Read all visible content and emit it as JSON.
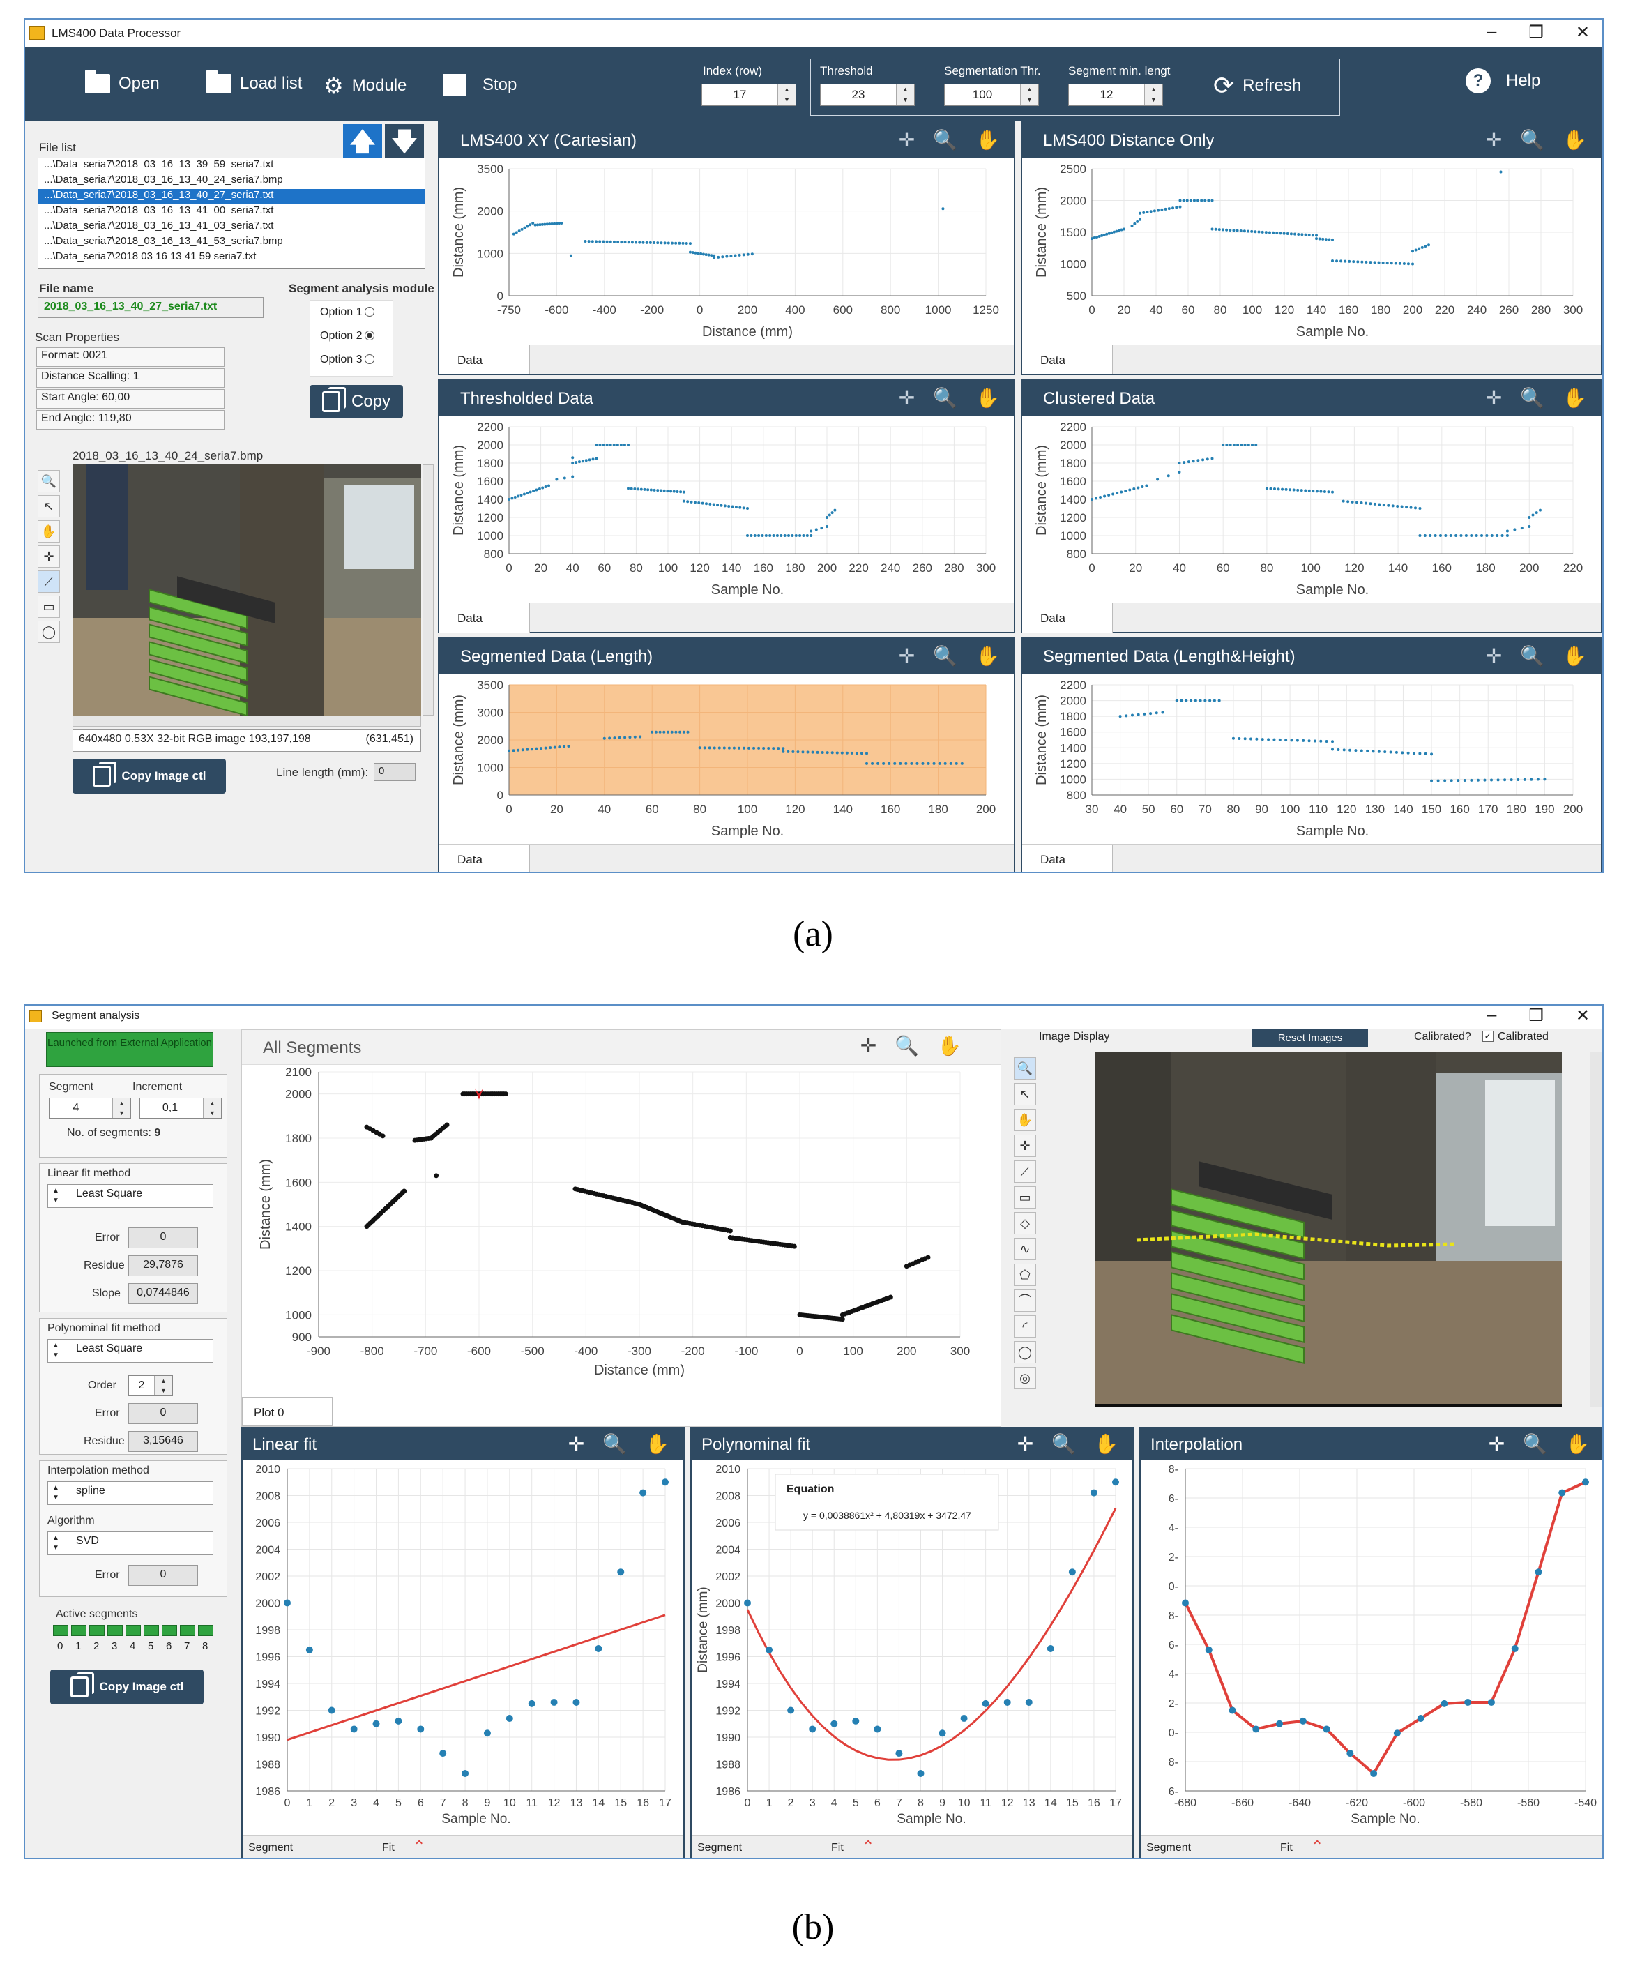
{
  "captions": {
    "a": "(a)",
    "b": "(b)"
  },
  "colors": {
    "toolbar": "#2f4a62",
    "accent": "#1e73c8",
    "dots": "#2580b3",
    "fit": "#e0403a",
    "orange": "#f9c794"
  },
  "appA": {
    "title": "LMS400 Data Processor",
    "toolbar": {
      "open": "Open",
      "load_list": "Load list",
      "module": "Module",
      "stop": "Stop",
      "index_label": "Index (row)",
      "index_value": "17",
      "threshold_label": "Threshold",
      "threshold_value": "23",
      "seg_thr_label": "Segmentation Thr.",
      "seg_thr_value": "100",
      "seg_min_label": "Segment min. lengt",
      "seg_min_value": "12",
      "refresh": "Refresh",
      "help": "Help"
    },
    "file_list_label": "File list",
    "files": [
      "...\\Data_seria7\\2018_03_16_13_39_59_seria7.txt",
      "...\\Data_seria7\\2018_03_16_13_40_24_seria7.bmp",
      "...\\Data_seria7\\2018_03_16_13_40_27_seria7.txt",
      "...\\Data_seria7\\2018_03_16_13_41_00_seria7.txt",
      "...\\Data_seria7\\2018_03_16_13_41_03_seria7.txt",
      "...\\Data_seria7\\2018_03_16_13_41_53_seria7.bmp",
      "...\\Data_seria7\\2018 03 16 13 41 59 seria7.txt"
    ],
    "selected_file_index": 2,
    "file_name_label": "File name",
    "file_name": "2018_03_16_13_40_27_seria7.txt",
    "seg_module_label": "Segment analysis module",
    "options": [
      "Option 1",
      "Option 2",
      "Option 3"
    ],
    "selected_option": 1,
    "copy": "Copy",
    "scan_props_label": "Scan Properties",
    "scan_props": [
      "Format: 0021",
      "Distance Scalling: 1",
      "Start Angle: 60,00",
      "End Angle: 119,80"
    ],
    "image_name": "2018_03_16_13_40_24_seria7.bmp",
    "image_info": "640x480 0.53X 32-bit RGB image 193,197,198",
    "image_coords": "(631,451)",
    "copy_image": "Copy Image ctl",
    "line_length_label": "Line length (mm):",
    "line_length": "0",
    "legend": "Data",
    "panels": [
      {
        "title": "LMS400 XY (Cartesian)",
        "xlabel": "Distance (mm)",
        "ylabel": "Distance (mm)",
        "xticks": [
          "-750",
          "-600",
          "-400",
          "-200",
          "0",
          "200",
          "400",
          "600",
          "800",
          "1000",
          "1250"
        ],
        "yticks": [
          "0",
          "1000",
          "2000",
          "3500"
        ]
      },
      {
        "title": "LMS400 Distance Only",
        "xlabel": "Sample No.",
        "ylabel": "Distance (mm)",
        "xticks": [
          "0",
          "20",
          "40",
          "60",
          "80",
          "100",
          "120",
          "140",
          "160",
          "180",
          "200",
          "220",
          "240",
          "260",
          "280",
          "300"
        ],
        "yticks": [
          "500",
          "1000",
          "1500",
          "2000",
          "2500"
        ]
      },
      {
        "title": "Thresholded Data",
        "xlabel": "Sample No.",
        "ylabel": "Distance (mm)",
        "xticks": [
          "0",
          "20",
          "40",
          "60",
          "80",
          "100",
          "120",
          "140",
          "160",
          "180",
          "200",
          "220",
          "240",
          "260",
          "280",
          "300"
        ],
        "yticks": [
          "800",
          "1000",
          "1200",
          "1400",
          "1600",
          "1800",
          "2000",
          "2200"
        ]
      },
      {
        "title": "Clustered Data",
        "xlabel": "Sample No.",
        "ylabel": "Distance (mm)",
        "xticks": [
          "0",
          "20",
          "40",
          "60",
          "80",
          "100",
          "120",
          "140",
          "160",
          "180",
          "200",
          "220"
        ],
        "yticks": [
          "800",
          "1000",
          "1200",
          "1400",
          "1600",
          "1800",
          "2000",
          "2200"
        ]
      },
      {
        "title": "Segmented Data (Length)",
        "xlabel": "Sample No.",
        "ylabel": "Distance (mm)",
        "xticks": [
          "0",
          "20",
          "40",
          "60",
          "80",
          "100",
          "120",
          "140",
          "160",
          "180",
          "200"
        ],
        "yticks": [
          "0",
          "1000",
          "2000",
          "3000",
          "3500"
        ]
      },
      {
        "title": "Segmented Data (Length&Height)",
        "xlabel": "Sample No.",
        "ylabel": "Distance (mm)",
        "xticks": [
          "30",
          "40",
          "50",
          "60",
          "70",
          "80",
          "90",
          "100",
          "110",
          "120",
          "130",
          "140",
          "150",
          "160",
          "170",
          "180",
          "190",
          "200"
        ],
        "yticks": [
          "800",
          "1000",
          "1200",
          "1400",
          "1600",
          "1800",
          "2000",
          "2200"
        ]
      }
    ]
  },
  "appB": {
    "title": "Segment analysis",
    "launched": "Launched from External Application",
    "segment_label": "Segment",
    "segment_value": "4",
    "increment_label": "Increment",
    "increment_value": "0,1",
    "nseg_label": "No. of segments:",
    "nseg_value": "9",
    "linfit_label": "Linear fit method",
    "linfit_value": "Least Square",
    "error_label": "Error",
    "lin_error": "0",
    "residue_label": "Residue",
    "lin_residue": "29,7876",
    "slope_label": "Slope",
    "lin_slope": "0,0744846",
    "polyfit_label": "Polynominal fit method",
    "polyfit_value": "Least Square",
    "order_label": "Order",
    "order_value": "2",
    "poly_error": "0",
    "poly_residue": "3,15646",
    "interp_label": "Interpolation method",
    "interp_value": "spline",
    "algo_label": "Algorithm",
    "algo_value": "SVD",
    "interp_error": "0",
    "active_label": "Active segments",
    "active_idx": [
      "0",
      "1",
      "2",
      "3",
      "4",
      "5",
      "6",
      "7",
      "8"
    ],
    "copy_image": "Copy Image ctl",
    "all_segments": {
      "title": "All Segments",
      "xlabel": "Distance (mm)",
      "ylabel": "Distance (mm)",
      "legend": "Plot 0",
      "xticks": [
        "-900",
        "-800",
        "-700",
        "-600",
        "-500",
        "-400",
        "-300",
        "-200",
        "-100",
        "0",
        "100",
        "200",
        "300"
      ],
      "yticks": [
        "900",
        "1000",
        "1200",
        "1400",
        "1600",
        "1800",
        "2000",
        "2100"
      ]
    },
    "image_display": "Image Display",
    "reset_images": "Reset Images",
    "calibrated_q": "Calibrated?",
    "calibrated": "Calibrated",
    "linear": {
      "title": "Linear fit",
      "xlabel": "Sample No.",
      "xticks": [
        "0",
        "1",
        "2",
        "3",
        "4",
        "5",
        "6",
        "7",
        "8",
        "9",
        "10",
        "11",
        "12",
        "13",
        "14",
        "15",
        "16",
        "17"
      ],
      "yticks": [
        "1986",
        "1988",
        "1990",
        "1992",
        "1994",
        "1996",
        "1998",
        "2000",
        "2002",
        "2004",
        "2006",
        "2008",
        "2010"
      ]
    },
    "poly": {
      "title": "Polynominal fit",
      "xlabel": "Sample No.",
      "ylabel": "Distance (mm)",
      "equation_title": "Equation",
      "equation": "y = 0,0038861x² + 4,80319x + 3472,47",
      "xticks": [
        "0",
        "1",
        "2",
        "3",
        "4",
        "5",
        "6",
        "7",
        "8",
        "9",
        "10",
        "11",
        "12",
        "13",
        "14",
        "15",
        "16",
        "17"
      ],
      "yticks": [
        "1986",
        "1988",
        "1990",
        "1992",
        "1994",
        "1996",
        "1998",
        "2000",
        "2002",
        "2004",
        "2006",
        "2008",
        "2010"
      ]
    },
    "interp": {
      "title": "Interpolation",
      "xlabel": "Sample No.",
      "xticks": [
        "-680",
        "-660",
        "-640",
        "-620",
        "-600",
        "-580",
        "-560",
        "-540"
      ],
      "yticks": [
        "6-",
        "8-",
        "0-",
        "2-",
        "4-",
        "6-",
        "8-",
        "0-",
        "2-",
        "4-",
        "6-",
        "8-"
      ]
    },
    "legend_segment": "Segment",
    "legend_fit": "Fit"
  },
  "chart_data": [
    {
      "type": "scatter",
      "name": "segment-4-points",
      "x": [
        0,
        1,
        2,
        3,
        4,
        5,
        6,
        7,
        8,
        9,
        10,
        11,
        12,
        13,
        14,
        15,
        16,
        17
      ],
      "y": [
        2000,
        1996.5,
        1992,
        1990.6,
        1991,
        1991.2,
        1990.6,
        1988.8,
        1987.3,
        1990.3,
        1991.4,
        1992.5,
        1992.6,
        1992.6,
        1996.6,
        2002.3,
        2008.2,
        2009
      ]
    },
    {
      "type": "line",
      "name": "linear-fit",
      "x": [
        0,
        17
      ],
      "y": [
        1989.8,
        1999.1
      ]
    },
    {
      "type": "line",
      "name": "poly-fit",
      "equation": "y = 0,0038861x² + 4,80319x + 3472,47"
    }
  ]
}
